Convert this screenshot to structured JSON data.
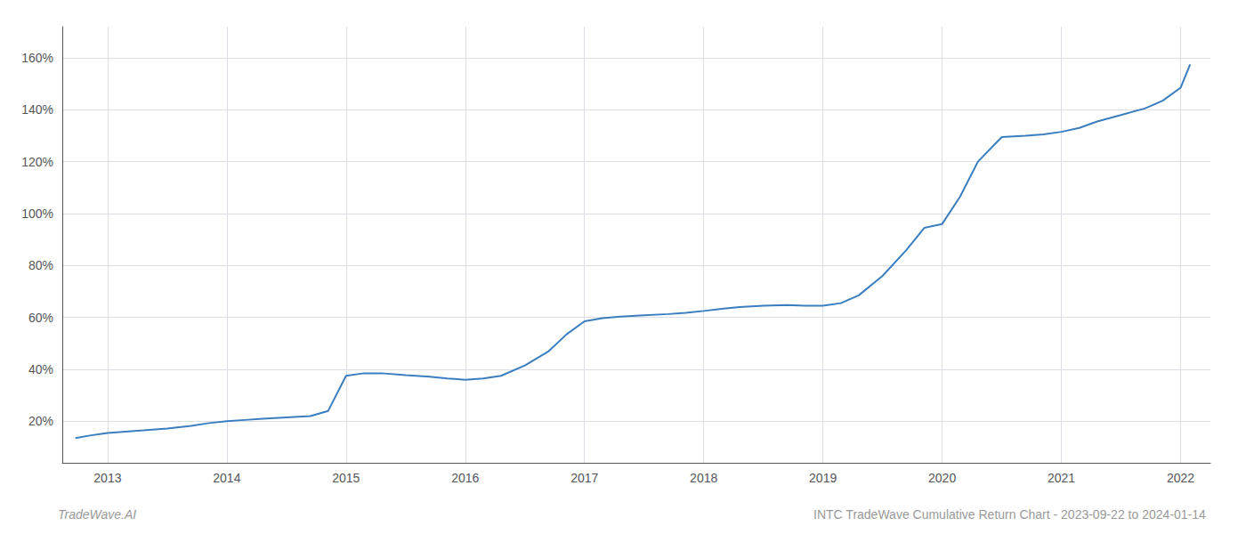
{
  "chart_data": {
    "type": "line",
    "title": "INTC TradeWave Cumulative Return Chart - 2023-09-22 to 2024-01-14",
    "annotations": [
      "TradeWave.AI"
    ],
    "x": [
      2012.73,
      2012.85,
      2013.0,
      2013.15,
      2013.3,
      2013.5,
      2013.7,
      2013.85,
      2014.0,
      2014.15,
      2014.3,
      2014.5,
      2014.7,
      2014.85,
      2015.0,
      2015.15,
      2015.3,
      2015.5,
      2015.7,
      2015.85,
      2016.0,
      2016.15,
      2016.3,
      2016.5,
      2016.7,
      2016.85,
      2017.0,
      2017.15,
      2017.3,
      2017.5,
      2017.7,
      2017.85,
      2018.0,
      2018.15,
      2018.3,
      2018.5,
      2018.7,
      2018.85,
      2019.0,
      2019.15,
      2019.3,
      2019.5,
      2019.7,
      2019.85,
      2020.0,
      2020.15,
      2020.3,
      2020.5,
      2020.7,
      2020.85,
      2021.0,
      2021.15,
      2021.3,
      2021.5,
      2021.7,
      2021.85,
      2022.0,
      2022.08
    ],
    "values": [
      0.135,
      0.145,
      0.155,
      0.16,
      0.165,
      0.172,
      0.182,
      0.193,
      0.2,
      0.205,
      0.21,
      0.215,
      0.22,
      0.24,
      0.375,
      0.385,
      0.385,
      0.378,
      0.372,
      0.365,
      0.36,
      0.365,
      0.375,
      0.415,
      0.47,
      0.535,
      0.585,
      0.597,
      0.603,
      0.608,
      0.613,
      0.618,
      0.625,
      0.633,
      0.64,
      0.645,
      0.648,
      0.645,
      0.645,
      0.655,
      0.685,
      0.76,
      0.86,
      0.945,
      0.96,
      1.065,
      1.2,
      1.295,
      1.3,
      1.305,
      1.315,
      1.33,
      1.355,
      1.38,
      1.405,
      1.435,
      1.485,
      1.575
    ],
    "color": "#3a7ebf",
    "xlim": [
      2012.62,
      2022.25
    ],
    "xticks": [
      2013,
      2014,
      2015,
      2016,
      2017,
      2018,
      2019,
      2020,
      2021,
      2022
    ],
    "ylim": [
      0.04,
      1.72
    ],
    "yticks": [
      {
        "value": 0.2,
        "label": "20%"
      },
      {
        "value": 0.4,
        "label": "40%"
      },
      {
        "value": 0.6,
        "label": "60%"
      },
      {
        "value": 0.8,
        "label": "80%"
      },
      {
        "value": 1.0,
        "label": "100%"
      },
      {
        "value": 1.2,
        "label": "120%"
      },
      {
        "value": 1.4,
        "label": "140%"
      },
      {
        "value": 1.6,
        "label": "160%"
      }
    ],
    "grid": true
  }
}
